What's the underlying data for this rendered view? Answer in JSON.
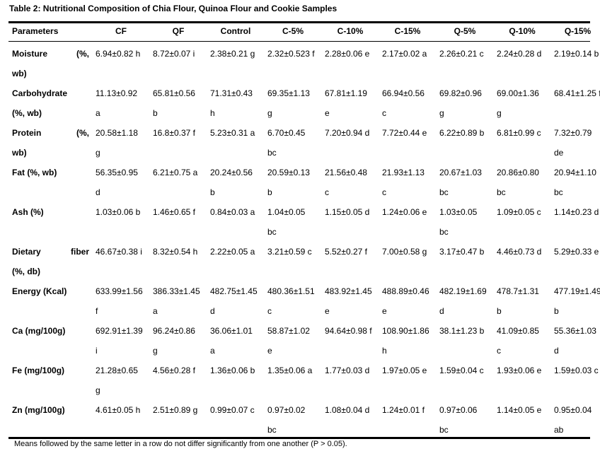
{
  "title": "Table 2: Nutritional Composition of Chia Flour, Quinoa Flour and Cookie Samples",
  "headers": [
    "Parameters",
    "CF",
    "QF",
    "Control",
    "C-5%",
    "C-10%",
    "C-15%",
    "Q-5%",
    "Q-10%",
    "Q-15%"
  ],
  "rows": [
    {
      "param": [
        "Moisture (%,",
        "wb)"
      ],
      "cells": [
        [
          "6.94±0.82 h"
        ],
        [
          "8.72±0.07 i"
        ],
        [
          "2.38±0.21 g"
        ],
        [
          "2.32±0.523 f"
        ],
        [
          "2.28±0.06 e"
        ],
        [
          "2.17±0.02 a"
        ],
        [
          "2.26±0.21 c"
        ],
        [
          "2.24±0.28 d"
        ],
        [
          "2.19±0.14 b"
        ]
      ]
    },
    {
      "param": [
        "Carbohydrate",
        "(%, wb)"
      ],
      "cells": [
        [
          "11.13±0.92",
          "a"
        ],
        [
          "65.81±0.56",
          "b"
        ],
        [
          "71.31±0.43",
          "h"
        ],
        [
          "69.35±1.13",
          "g"
        ],
        [
          "67.81±1.19",
          "e"
        ],
        [
          "66.94±0.56",
          "c"
        ],
        [
          "69.82±0.96",
          "g"
        ],
        [
          "69.00±1.36",
          "g"
        ],
        [
          "68.41±1.25 f"
        ]
      ]
    },
    {
      "param": [
        "Protein (%,",
        "wb)"
      ],
      "cells": [
        [
          "20.58±1.18",
          "g"
        ],
        [
          "16.8±0.37 f"
        ],
        [
          "5.23±0.31 a"
        ],
        [
          "6.70±0.45",
          "bc"
        ],
        [
          "7.20±0.94 d"
        ],
        [
          "7.72±0.44 e"
        ],
        [
          "6.22±0.89 b"
        ],
        [
          "6.81±0.99 c"
        ],
        [
          "7.32±0.79",
          "de"
        ]
      ]
    },
    {
      "param": [
        "Fat (%, wb)"
      ],
      "cells": [
        [
          "56.35±0.95",
          "d"
        ],
        [
          "6.21±0.75 a"
        ],
        [
          "20.24±0.56",
          "b"
        ],
        [
          "20.59±0.13",
          "b"
        ],
        [
          "21.56±0.48",
          "c"
        ],
        [
          "21.93±1.13",
          "c"
        ],
        [
          "20.67±1.03",
          "bc"
        ],
        [
          "20.86±0.80",
          "bc"
        ],
        [
          "20.94±1.10",
          "bc"
        ]
      ]
    },
    {
      "param": [
        "Ash (%)"
      ],
      "cells": [
        [
          "1.03±0.06 b"
        ],
        [
          "1.46±0.65 f"
        ],
        [
          "0.84±0.03 a"
        ],
        [
          "1.04±0.05",
          "bc"
        ],
        [
          "1.15±0.05 d"
        ],
        [
          "1.24±0.06 e"
        ],
        [
          "1.03±0.05",
          "bc"
        ],
        [
          "1.09±0.05 c"
        ],
        [
          "1.14±0.23 d"
        ]
      ]
    },
    {
      "param": [
        "Dietary fiber",
        "(%, db)"
      ],
      "cells": [
        [
          "46.67±0.38 i"
        ],
        [
          "8.32±0.54 h"
        ],
        [
          "2.22±0.05 a"
        ],
        [
          "3.21±0.59 c"
        ],
        [
          "5.52±0.27 f"
        ],
        [
          "7.00±0.58 g"
        ],
        [
          "3.17±0.47 b"
        ],
        [
          "4.46±0.73 d"
        ],
        [
          "5.29±0.33 e"
        ]
      ]
    },
    {
      "param": [
        "Energy (Kcal)"
      ],
      "cells": [
        [
          "633.99±1.56",
          "f"
        ],
        [
          "386.33±1.45",
          "a"
        ],
        [
          "482.75±1.45",
          "d"
        ],
        [
          "480.36±1.51",
          "c"
        ],
        [
          "483.92±1.45",
          "e"
        ],
        [
          "488.89±0.46",
          "e"
        ],
        [
          "482.19±1.69",
          "d"
        ],
        [
          "478.7±1.31",
          "b"
        ],
        [
          "477.19±1.49",
          "b"
        ]
      ]
    },
    {
      "param": [
        "Ca (mg/100g)"
      ],
      "cells": [
        [
          "692.91±1.39",
          "i"
        ],
        [
          "96.24±0.86",
          "g"
        ],
        [
          "36.06±1.01",
          "a"
        ],
        [
          "58.87±1.02",
          "e"
        ],
        [
          "94.64±0.98 f"
        ],
        [
          "108.90±1.86",
          "h"
        ],
        [
          "38.1±1.23 b"
        ],
        [
          "41.09±0.85",
          "c"
        ],
        [
          "55.36±1.03",
          "d"
        ]
      ]
    },
    {
      "param": [
        "Fe (mg/100g)"
      ],
      "cells": [
        [
          "21.28±0.65",
          "g"
        ],
        [
          "4.56±0.28 f"
        ],
        [
          "1.36±0.06 b"
        ],
        [
          "1.35±0.06 a"
        ],
        [
          "1.77±0.03 d"
        ],
        [
          "1.97±0.05 e"
        ],
        [
          "1.59±0.04 c"
        ],
        [
          "1.93±0.06 e"
        ],
        [
          "1.59±0.03 c"
        ]
      ]
    },
    {
      "param": [
        "Zn (mg/100g)"
      ],
      "cells": [
        [
          "4.61±0.05 h"
        ],
        [
          "2.51±0.89 g"
        ],
        [
          "0.99±0.07 c"
        ],
        [
          "0.97±0.02",
          "bc"
        ],
        [
          "1.08±0.04 d"
        ],
        [
          "1.24±0.01 f"
        ],
        [
          "0.97±0.06",
          "bc"
        ],
        [
          "1.14±0.05 e"
        ],
        [
          "0.95±0.04",
          "ab"
        ]
      ]
    }
  ],
  "footnote": "Means followed by the same letter in a row do not differ significantly from one another (P > 0.05)."
}
